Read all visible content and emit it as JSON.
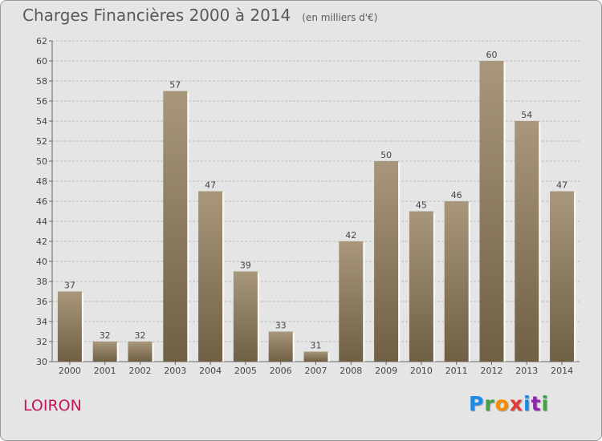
{
  "header": {
    "title": "Charges Financières 2000 à 2014",
    "subtitle": "(en milliers d'€)"
  },
  "footer": {
    "commune": "LOIRON",
    "logo_letters": [
      "P",
      "r",
      "o",
      "x",
      "i",
      "t",
      "i"
    ],
    "logo_colors": [
      "#1e88e5",
      "#43a047",
      "#fb8c00",
      "#e53935",
      "#1e88e5",
      "#8e24aa",
      "#43a047"
    ]
  },
  "chart_data": {
    "type": "bar",
    "categories": [
      "2000",
      "2001",
      "2002",
      "2003",
      "2004",
      "2005",
      "2006",
      "2007",
      "2008",
      "2009",
      "2010",
      "2011",
      "2012",
      "2013",
      "2014"
    ],
    "values": [
      37,
      32,
      32,
      57,
      47,
      39,
      33,
      31,
      42,
      50,
      45,
      46,
      60,
      54,
      47
    ],
    "ylim": [
      30,
      62
    ],
    "yticks": [
      30,
      32,
      34,
      36,
      38,
      40,
      42,
      44,
      46,
      48,
      50,
      52,
      54,
      56,
      58,
      60,
      62
    ],
    "grid": true,
    "bar_color_top": "#a8977b",
    "bar_color_bottom": "#6f5f45"
  }
}
